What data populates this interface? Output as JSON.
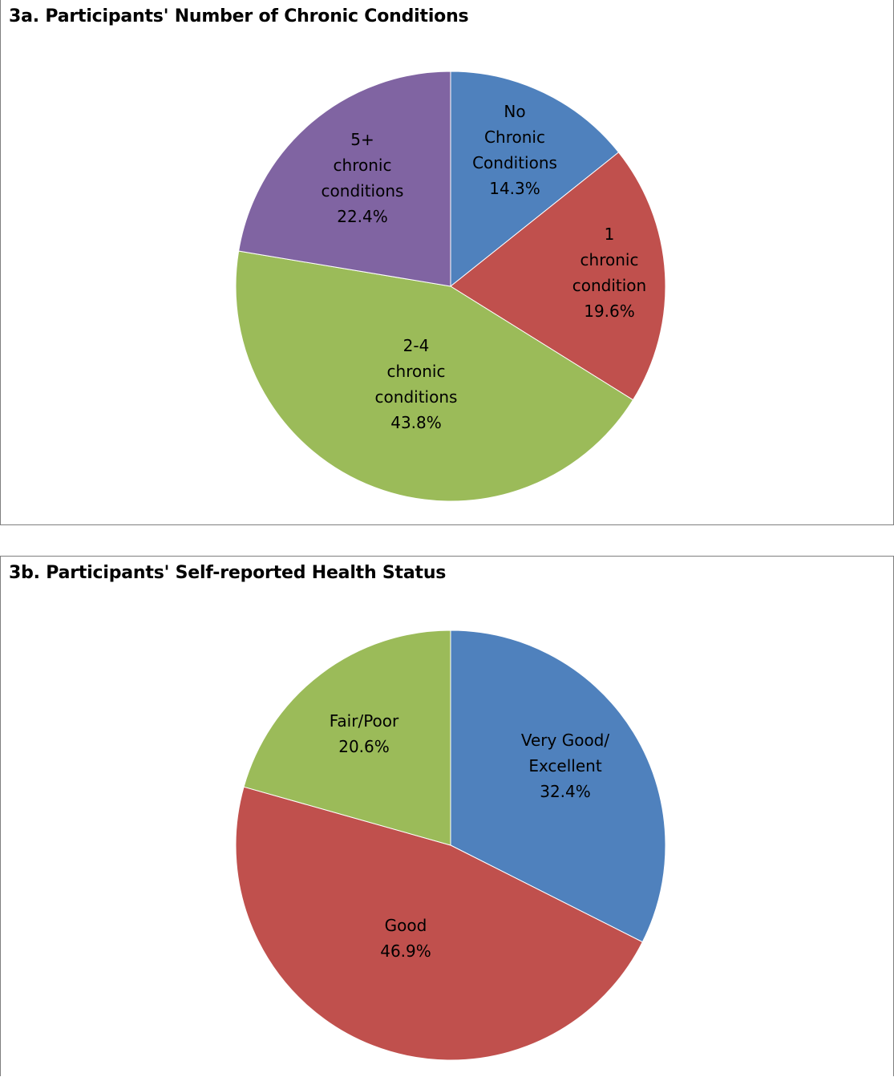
{
  "chart_data": [
    {
      "type": "pie",
      "title": "3a. Participants' Number of Chronic Conditions",
      "slices": [
        {
          "label_lines": [
            "No",
            "Chronic",
            "Conditions"
          ],
          "value": 14.3,
          "value_label": "14.3%",
          "color": "#4F81BD"
        },
        {
          "label_lines": [
            "1",
            "chronic",
            "condition"
          ],
          "value": 19.6,
          "value_label": "19.6%",
          "color": "#C0504D"
        },
        {
          "label_lines": [
            "2-4",
            "chronic",
            "conditions"
          ],
          "value": 43.8,
          "value_label": "43.8%",
          "color": "#9BBB59"
        },
        {
          "label_lines": [
            "5+",
            "chronic",
            "conditions"
          ],
          "value": 22.4,
          "value_label": "22.4%",
          "color": "#8064A2"
        }
      ]
    },
    {
      "type": "pie",
      "title": "3b. Participants' Self-reported Health Status",
      "slices": [
        {
          "label_lines": [
            "Very Good/",
            "Excellent"
          ],
          "value": 32.4,
          "value_label": "32.4%",
          "color": "#4F81BD"
        },
        {
          "label_lines": [
            "Good"
          ],
          "value": 46.9,
          "value_label": "46.9%",
          "color": "#C0504D"
        },
        {
          "label_lines": [
            "Fair/Poor"
          ],
          "value": 20.6,
          "value_label": "20.6%",
          "color": "#9BBB59"
        }
      ]
    }
  ]
}
